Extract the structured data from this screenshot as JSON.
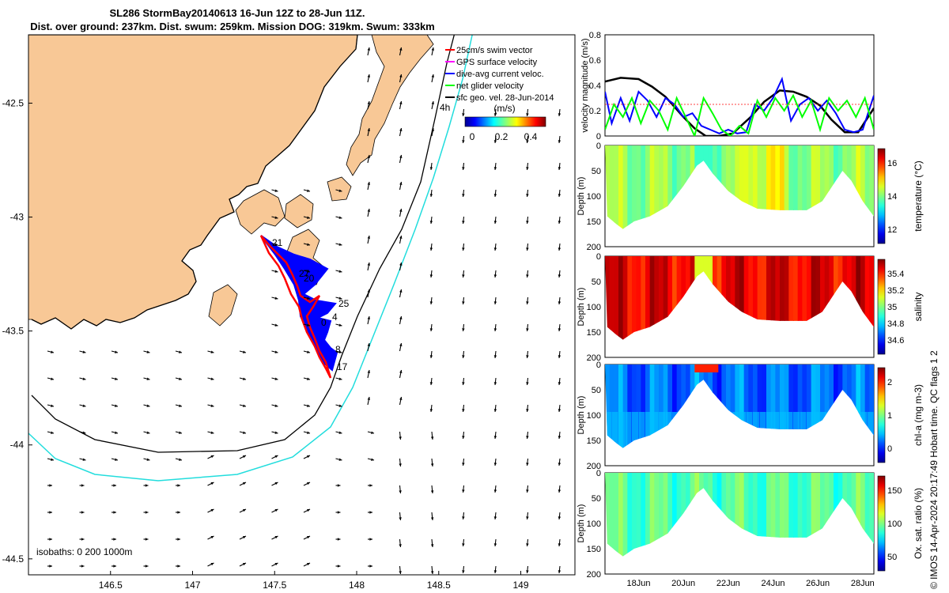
{
  "figure": {
    "title_line1": "SL286 StormBay20140613 16-Jun 12Z to 28-Jun 11Z.",
    "title_line2": "Dist. over ground: 237km. Dist. swum: 259km. Mission DOG: 319km. Swum: 333km",
    "side_note": "© IMOS 14-Apr-2024 20:17:49 Hobart time. QC flags 1  2",
    "colors": {
      "land": "#f8c896",
      "glider": "#ff0000",
      "dive_avg": "#0000ff",
      "net_glider": "#00ff00",
      "isobath_200": "#000000",
      "isobath_1000": "#22dddd"
    }
  },
  "map": {
    "x_ticks": [
      "146.5",
      "147",
      "147.5",
      "148",
      "148.5",
      "149"
    ],
    "y_ticks": [
      "-42.5",
      "-43",
      "-43.5",
      "-44",
      "-44.5"
    ],
    "legend": [
      {
        "label": "25cm/s swim vector",
        "color": "#ff0000"
      },
      {
        "label": "GPS surface velocity",
        "color": "#ff00ff"
      },
      {
        "label": "dive-avg current veloc.",
        "color": "#0000ff"
      },
      {
        "label": "net glider velocity",
        "color": "#00ff00"
      },
      {
        "label": "sfc geo. vel. 28-Jun-2014",
        "color": "#000000"
      }
    ],
    "colorbar_unit": "(m/s)",
    "colorbar_ticks": [
      "0",
      "0.2",
      "0.4"
    ],
    "isobaths_label": "isobaths: 0   200  1000m",
    "track_labels": [
      "21",
      "27",
      "20",
      "25",
      "4",
      "0",
      "8",
      "17",
      "4h"
    ],
    "x_range": [
      146.0,
      149.33
    ],
    "y_range": [
      -44.57,
      -42.2
    ]
  },
  "chart_data": [
    {
      "type": "line",
      "ylabel": "velocity magnitude (m/s)",
      "ylim": [
        0,
        0.8
      ],
      "y_ticks": [
        "0",
        "0.2",
        "0.4",
        "0.6",
        "0.8"
      ],
      "xlim": [
        16.5,
        28.5
      ],
      "series": [
        {
          "color": "#000000",
          "x": [
            16.5,
            17.2,
            18.0,
            18.6,
            19.2,
            19.6,
            20.0,
            20.5,
            21.0,
            21.6,
            22.2,
            23.0,
            23.6,
            24.3,
            24.9,
            25.5,
            26.1,
            26.6,
            27.2,
            27.8,
            28.5
          ],
          "values": [
            0.43,
            0.46,
            0.45,
            0.39,
            0.31,
            0.23,
            0.15,
            0.06,
            0.0,
            0.0,
            0.02,
            0.15,
            0.27,
            0.36,
            0.35,
            0.31,
            0.24,
            0.13,
            0.03,
            0.03,
            0.22
          ]
        },
        {
          "color": "#0000ff",
          "x": [
            16.5,
            16.8,
            17.2,
            17.6,
            18.0,
            18.4,
            18.8,
            19.2,
            19.6,
            20.0,
            20.4,
            20.8,
            21.2,
            21.6,
            22.0,
            22.4,
            22.8,
            23.2,
            23.6,
            24.0,
            24.4,
            24.8,
            25.2,
            25.6,
            26.0,
            26.4,
            26.8,
            27.2,
            27.6,
            28.0,
            28.5
          ],
          "values": [
            0.35,
            0.1,
            0.3,
            0.12,
            0.35,
            0.28,
            0.15,
            0.3,
            0.25,
            0.15,
            0.18,
            0.08,
            0.05,
            0.02,
            0.05,
            0.02,
            0.03,
            0.25,
            0.2,
            0.3,
            0.45,
            0.12,
            0.25,
            0.3,
            0.2,
            0.28,
            0.18,
            0.05,
            0.03,
            0.05,
            0.32
          ]
        },
        {
          "color": "#00ff00",
          "x": [
            16.5,
            16.9,
            17.3,
            17.7,
            18.1,
            18.5,
            18.9,
            19.3,
            19.7,
            20.1,
            20.5,
            20.9,
            21.3,
            21.7,
            22.1,
            22.5,
            22.9,
            23.3,
            23.7,
            24.1,
            24.5,
            24.9,
            25.3,
            25.7,
            26.1,
            26.5,
            26.9,
            27.3,
            27.7,
            28.1,
            28.5
          ],
          "values": [
            0.05,
            0.25,
            0.15,
            0.3,
            0.1,
            0.28,
            0.2,
            0.05,
            0.3,
            0.15,
            0.0,
            0.3,
            0.18,
            0.05,
            0.0,
            0.08,
            0.02,
            0.28,
            0.15,
            0.3,
            0.2,
            0.32,
            0.15,
            0.28,
            0.05,
            0.3,
            0.2,
            0.28,
            0.15,
            0.3,
            0.05
          ]
        }
      ]
    },
    {
      "type": "heatmap",
      "ylabel": "Depth (m)",
      "clabel": "temperature (°C)",
      "c_ticks": [
        "12",
        "14",
        "16"
      ],
      "y_ticks": [
        "0",
        "50",
        "100",
        "150",
        "200"
      ],
      "ylim": [
        200,
        0
      ],
      "cmap": "temp"
    },
    {
      "type": "heatmap",
      "ylabel": "Depth (m)",
      "clabel": "salinity",
      "c_ticks": [
        "34.6",
        "34.8",
        "35",
        "35.2",
        "35.4"
      ],
      "y_ticks": [
        "0",
        "50",
        "100",
        "150",
        "200"
      ],
      "ylim": [
        200,
        0
      ],
      "cmap": "sal"
    },
    {
      "type": "heatmap",
      "ylabel": "Depth (m)",
      "clabel": "chl-a (mg m-3)",
      "c_ticks": [
        "0",
        "1",
        "2"
      ],
      "y_ticks": [
        "0",
        "50",
        "100",
        "150",
        "200"
      ],
      "ylim": [
        200,
        0
      ],
      "cmap": "chl"
    },
    {
      "type": "heatmap",
      "ylabel": "Depth (m)",
      "clabel": "Ox. sat. ratio (%)",
      "c_ticks": [
        "50",
        "100",
        "150"
      ],
      "y_ticks": [
        "0",
        "50",
        "100",
        "150",
        "200"
      ],
      "ylim": [
        200,
        0
      ],
      "cmap": "oxy",
      "x_ticks": [
        "18Jun",
        "20Jun",
        "22Jun",
        "24Jun",
        "26Jun",
        "28Jun"
      ]
    }
  ]
}
